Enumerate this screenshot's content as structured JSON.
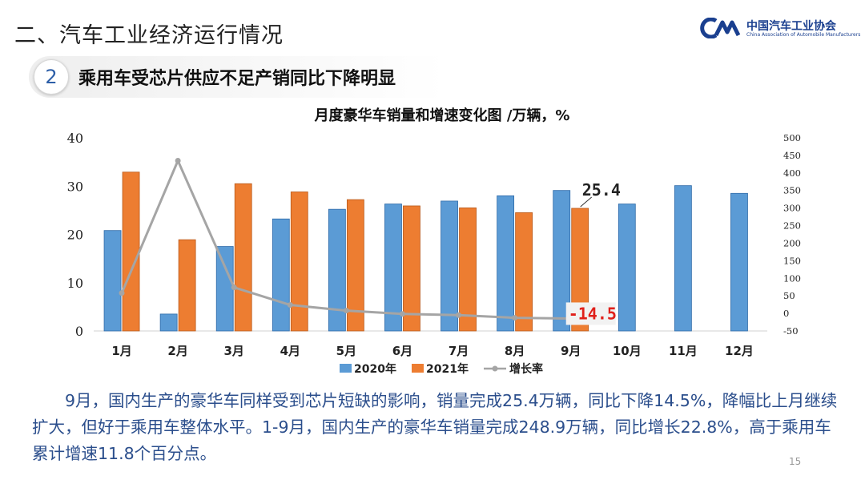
{
  "header": {
    "section_title": "二、汽车工业经济运行情况",
    "logo_cn": "中国汽车工业协会",
    "logo_en": "China Association of Automobile Manufacturers",
    "sub_number": "2",
    "sub_title": "乘用车受芯片供应不足产销同比下降明显"
  },
  "chart_data": {
    "type": "bar",
    "title": "月度豪华车销量和增速变化图  /万辆，%",
    "categories": [
      "1月",
      "2月",
      "3月",
      "4月",
      "5月",
      "6月",
      "7月",
      "8月",
      "9月",
      "10月",
      "11月",
      "12月"
    ],
    "series": [
      {
        "name": "2020年",
        "type": "bar",
        "axis": "left",
        "color": "#5b9bd5",
        "values": [
          20.8,
          3.5,
          17.5,
          23.2,
          25.2,
          26.3,
          26.9,
          28.0,
          29.1,
          26.3,
          30.1,
          28.5
        ]
      },
      {
        "name": "2021年",
        "type": "bar",
        "axis": "left",
        "color": "#ed7d31",
        "values": [
          32.9,
          18.9,
          30.5,
          28.8,
          27.2,
          25.9,
          25.5,
          24.5,
          25.4,
          null,
          null,
          null
        ]
      },
      {
        "name": "增长率",
        "type": "line",
        "axis": "right",
        "color": "#a5a5a5",
        "values": [
          58,
          435,
          74,
          24,
          8,
          -1.5,
          -5,
          -12.5,
          -14.5,
          null,
          null,
          null
        ]
      }
    ],
    "ylim_left": [
      0,
      40
    ],
    "yticks_left": [
      0,
      10,
      20,
      30,
      40
    ],
    "ylim_right": [
      -50,
      500
    ],
    "yticks_right": [
      -50,
      0,
      50,
      100,
      150,
      200,
      250,
      300,
      350,
      400,
      450,
      500
    ],
    "annotations": [
      {
        "text": "25.4",
        "series": 1,
        "index": 8
      },
      {
        "text": "-14.5",
        "series": 2,
        "index": 8
      }
    ],
    "legend_position": "bottom",
    "grid": false
  },
  "body": {
    "paragraph": "9月，国内生产的豪华车同样受到芯片短缺的影响，销量完成25.4万辆，同比下降14.5%，降幅比上月继续扩大，但好于乘用车整体水平。1-9月，国内生产的豪华车销量完成248.9万辆，同比增长22.8%，高于乘用车累计增速11.8个百分点。"
  },
  "page_number": "15"
}
